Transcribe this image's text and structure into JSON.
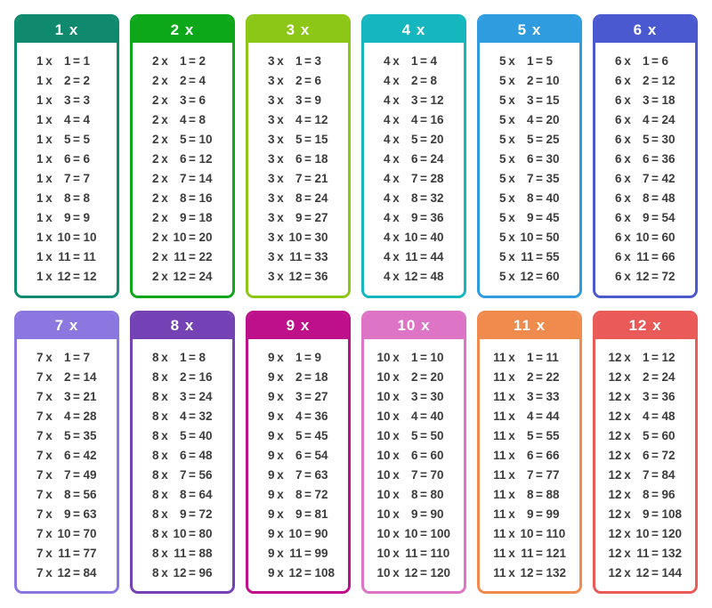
{
  "page": {
    "background": "#ffffff",
    "text_color": "#3c3c3c",
    "header_text_color": "#ffffff"
  },
  "tables": [
    {
      "id": 1,
      "title": "1 x",
      "color": "#108a6e",
      "rows": [
        {
          "a": "1",
          "b": "1",
          "p": "1"
        },
        {
          "a": "1",
          "b": "2",
          "p": "2"
        },
        {
          "a": "1",
          "b": "3",
          "p": "3"
        },
        {
          "a": "1",
          "b": "4",
          "p": "4"
        },
        {
          "a": "1",
          "b": "5",
          "p": "5"
        },
        {
          "a": "1",
          "b": "6",
          "p": "6"
        },
        {
          "a": "1",
          "b": "7",
          "p": "7"
        },
        {
          "a": "1",
          "b": "8",
          "p": "8"
        },
        {
          "a": "1",
          "b": "9",
          "p": "9"
        },
        {
          "a": "1",
          "b": "10",
          "p": "10"
        },
        {
          "a": "1",
          "b": "11",
          "p": "11"
        },
        {
          "a": "1",
          "b": "12",
          "p": "12"
        }
      ]
    },
    {
      "id": 2,
      "title": "2 x",
      "color": "#0ca81a",
      "rows": [
        {
          "a": "2",
          "b": "1",
          "p": "2"
        },
        {
          "a": "2",
          "b": "2",
          "p": "4"
        },
        {
          "a": "2",
          "b": "3",
          "p": "6"
        },
        {
          "a": "2",
          "b": "4",
          "p": "8"
        },
        {
          "a": "2",
          "b": "5",
          "p": "10"
        },
        {
          "a": "2",
          "b": "6",
          "p": "12"
        },
        {
          "a": "2",
          "b": "7",
          "p": "14"
        },
        {
          "a": "2",
          "b": "8",
          "p": "16"
        },
        {
          "a": "2",
          "b": "9",
          "p": "18"
        },
        {
          "a": "2",
          "b": "10",
          "p": "20"
        },
        {
          "a": "2",
          "b": "11",
          "p": "22"
        },
        {
          "a": "2",
          "b": "12",
          "p": "24"
        }
      ]
    },
    {
      "id": 3,
      "title": "3 x",
      "color": "#8cc718",
      "rows": [
        {
          "a": "3",
          "b": "1",
          "p": "3"
        },
        {
          "a": "3",
          "b": "2",
          "p": "6"
        },
        {
          "a": "3",
          "b": "3",
          "p": "9"
        },
        {
          "a": "3",
          "b": "4",
          "p": "12"
        },
        {
          "a": "3",
          "b": "5",
          "p": "15"
        },
        {
          "a": "3",
          "b": "6",
          "p": "18"
        },
        {
          "a": "3",
          "b": "7",
          "p": "21"
        },
        {
          "a": "3",
          "b": "8",
          "p": "24"
        },
        {
          "a": "3",
          "b": "9",
          "p": "27"
        },
        {
          "a": "3",
          "b": "10",
          "p": "30"
        },
        {
          "a": "3",
          "b": "11",
          "p": "33"
        },
        {
          "a": "3",
          "b": "12",
          "p": "36"
        }
      ]
    },
    {
      "id": 4,
      "title": "4 x",
      "color": "#16b6be",
      "rows": [
        {
          "a": "4",
          "b": "1",
          "p": "4"
        },
        {
          "a": "4",
          "b": "2",
          "p": "8"
        },
        {
          "a": "4",
          "b": "3",
          "p": "12"
        },
        {
          "a": "4",
          "b": "4",
          "p": "16"
        },
        {
          "a": "4",
          "b": "5",
          "p": "20"
        },
        {
          "a": "4",
          "b": "6",
          "p": "24"
        },
        {
          "a": "4",
          "b": "7",
          "p": "28"
        },
        {
          "a": "4",
          "b": "8",
          "p": "32"
        },
        {
          "a": "4",
          "b": "9",
          "p": "36"
        },
        {
          "a": "4",
          "b": "10",
          "p": "40"
        },
        {
          "a": "4",
          "b": "11",
          "p": "44"
        },
        {
          "a": "4",
          "b": "12",
          "p": "48"
        }
      ]
    },
    {
      "id": 5,
      "title": "5 x",
      "color": "#2f9cdf",
      "rows": [
        {
          "a": "5",
          "b": "1",
          "p": "5"
        },
        {
          "a": "5",
          "b": "2",
          "p": "10"
        },
        {
          "a": "5",
          "b": "3",
          "p": "15"
        },
        {
          "a": "5",
          "b": "4",
          "p": "20"
        },
        {
          "a": "5",
          "b": "5",
          "p": "25"
        },
        {
          "a": "5",
          "b": "6",
          "p": "30"
        },
        {
          "a": "5",
          "b": "7",
          "p": "35"
        },
        {
          "a": "5",
          "b": "8",
          "p": "40"
        },
        {
          "a": "5",
          "b": "9",
          "p": "45"
        },
        {
          "a": "5",
          "b": "10",
          "p": "50"
        },
        {
          "a": "5",
          "b": "11",
          "p": "55"
        },
        {
          "a": "5",
          "b": "12",
          "p": "60"
        }
      ]
    },
    {
      "id": 6,
      "title": "6 x",
      "color": "#4a59cf",
      "rows": [
        {
          "a": "6",
          "b": "1",
          "p": "6"
        },
        {
          "a": "6",
          "b": "2",
          "p": "12"
        },
        {
          "a": "6",
          "b": "3",
          "p": "18"
        },
        {
          "a": "6",
          "b": "4",
          "p": "24"
        },
        {
          "a": "6",
          "b": "5",
          "p": "30"
        },
        {
          "a": "6",
          "b": "6",
          "p": "36"
        },
        {
          "a": "6",
          "b": "7",
          "p": "42"
        },
        {
          "a": "6",
          "b": "8",
          "p": "48"
        },
        {
          "a": "6",
          "b": "9",
          "p": "54"
        },
        {
          "a": "6",
          "b": "10",
          "p": "60"
        },
        {
          "a": "6",
          "b": "11",
          "p": "66"
        },
        {
          "a": "6",
          "b": "12",
          "p": "72"
        }
      ]
    },
    {
      "id": 7,
      "title": "7 x",
      "color": "#8c77e0",
      "rows": [
        {
          "a": "7",
          "b": "1",
          "p": "7"
        },
        {
          "a": "7",
          "b": "2",
          "p": "14"
        },
        {
          "a": "7",
          "b": "3",
          "p": "21"
        },
        {
          "a": "7",
          "b": "4",
          "p": "28"
        },
        {
          "a": "7",
          "b": "5",
          "p": "35"
        },
        {
          "a": "7",
          "b": "6",
          "p": "42"
        },
        {
          "a": "7",
          "b": "7",
          "p": "49"
        },
        {
          "a": "7",
          "b": "8",
          "p": "56"
        },
        {
          "a": "7",
          "b": "9",
          "p": "63"
        },
        {
          "a": "7",
          "b": "10",
          "p": "70"
        },
        {
          "a": "7",
          "b": "11",
          "p": "77"
        },
        {
          "a": "7",
          "b": "12",
          "p": "84"
        }
      ]
    },
    {
      "id": 8,
      "title": "8 x",
      "color": "#7542b5",
      "rows": [
        {
          "a": "8",
          "b": "1",
          "p": "8"
        },
        {
          "a": "8",
          "b": "2",
          "p": "16"
        },
        {
          "a": "8",
          "b": "3",
          "p": "24"
        },
        {
          "a": "8",
          "b": "4",
          "p": "32"
        },
        {
          "a": "8",
          "b": "5",
          "p": "40"
        },
        {
          "a": "8",
          "b": "6",
          "p": "48"
        },
        {
          "a": "8",
          "b": "7",
          "p": "56"
        },
        {
          "a": "8",
          "b": "8",
          "p": "64"
        },
        {
          "a": "8",
          "b": "9",
          "p": "72"
        },
        {
          "a": "8",
          "b": "10",
          "p": "80"
        },
        {
          "a": "8",
          "b": "11",
          "p": "88"
        },
        {
          "a": "8",
          "b": "12",
          "p": "96"
        }
      ]
    },
    {
      "id": 9,
      "title": "9 x",
      "color": "#bf108c",
      "rows": [
        {
          "a": "9",
          "b": "1",
          "p": "9"
        },
        {
          "a": "9",
          "b": "2",
          "p": "18"
        },
        {
          "a": "9",
          "b": "3",
          "p": "27"
        },
        {
          "a": "9",
          "b": "4",
          "p": "36"
        },
        {
          "a": "9",
          "b": "5",
          "p": "45"
        },
        {
          "a": "9",
          "b": "6",
          "p": "54"
        },
        {
          "a": "9",
          "b": "7",
          "p": "63"
        },
        {
          "a": "9",
          "b": "8",
          "p": "72"
        },
        {
          "a": "9",
          "b": "9",
          "p": "81"
        },
        {
          "a": "9",
          "b": "10",
          "p": "90"
        },
        {
          "a": "9",
          "b": "11",
          "p": "99"
        },
        {
          "a": "9",
          "b": "12",
          "p": "108"
        }
      ]
    },
    {
      "id": 10,
      "title": "10 x",
      "color": "#dd74c5",
      "rows": [
        {
          "a": "10",
          "b": "1",
          "p": "10"
        },
        {
          "a": "10",
          "b": "2",
          "p": "20"
        },
        {
          "a": "10",
          "b": "3",
          "p": "30"
        },
        {
          "a": "10",
          "b": "4",
          "p": "40"
        },
        {
          "a": "10",
          "b": "5",
          "p": "50"
        },
        {
          "a": "10",
          "b": "6",
          "p": "60"
        },
        {
          "a": "10",
          "b": "7",
          "p": "70"
        },
        {
          "a": "10",
          "b": "8",
          "p": "80"
        },
        {
          "a": "10",
          "b": "9",
          "p": "90"
        },
        {
          "a": "10",
          "b": "10",
          "p": "100"
        },
        {
          "a": "10",
          "b": "11",
          "p": "110"
        },
        {
          "a": "10",
          "b": "12",
          "p": "120"
        }
      ]
    },
    {
      "id": 11,
      "title": "11 x",
      "color": "#f18b4d",
      "rows": [
        {
          "a": "11",
          "b": "1",
          "p": "11"
        },
        {
          "a": "11",
          "b": "2",
          "p": "22"
        },
        {
          "a": "11",
          "b": "3",
          "p": "33"
        },
        {
          "a": "11",
          "b": "4",
          "p": "44"
        },
        {
          "a": "11",
          "b": "5",
          "p": "55"
        },
        {
          "a": "11",
          "b": "6",
          "p": "66"
        },
        {
          "a": "11",
          "b": "7",
          "p": "77"
        },
        {
          "a": "11",
          "b": "8",
          "p": "88"
        },
        {
          "a": "11",
          "b": "9",
          "p": "99"
        },
        {
          "a": "11",
          "b": "10",
          "p": "110"
        },
        {
          "a": "11",
          "b": "11",
          "p": "121"
        },
        {
          "a": "11",
          "b": "12",
          "p": "132"
        }
      ]
    },
    {
      "id": 12,
      "title": "12 x",
      "color": "#e95a59",
      "rows": [
        {
          "a": "12",
          "b": "1",
          "p": "12"
        },
        {
          "a": "12",
          "b": "2",
          "p": "24"
        },
        {
          "a": "12",
          "b": "3",
          "p": "36"
        },
        {
          "a": "12",
          "b": "4",
          "p": "48"
        },
        {
          "a": "12",
          "b": "5",
          "p": "60"
        },
        {
          "a": "12",
          "b": "6",
          "p": "72"
        },
        {
          "a": "12",
          "b": "7",
          "p": "84"
        },
        {
          "a": "12",
          "b": "8",
          "p": "96"
        },
        {
          "a": "12",
          "b": "9",
          "p": "108"
        },
        {
          "a": "12",
          "b": "10",
          "p": "120"
        },
        {
          "a": "12",
          "b": "11",
          "p": "132"
        },
        {
          "a": "12",
          "b": "12",
          "p": "144"
        }
      ]
    },
    {
      "operator_symbol": "x",
      "equals_symbol": "="
    }
  ]
}
